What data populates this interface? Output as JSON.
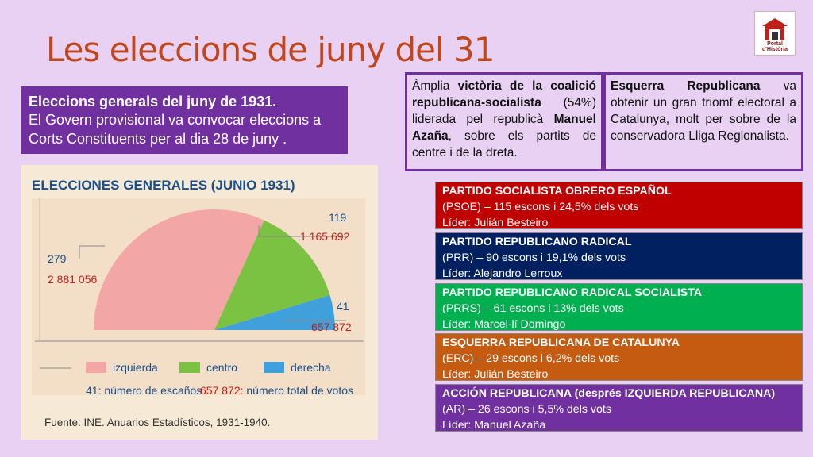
{
  "title": "Les eleccions de juny del 31",
  "logo": {
    "text": "Portal d'Història",
    "icon": "house-icon"
  },
  "intro": {
    "heading": "Eleccions generals del juny de 1931.",
    "body": "El Govern provisional va convocar eleccions a Corts Constituents per al dia 28 de juny ."
  },
  "box1": {
    "t1": "Àmplia ",
    "b1": "victòria de la coalició republicana-socialista",
    "t2": " (54%) liderada pel republicà ",
    "b2": "Manuel Azaña",
    "t3": ", sobre els partits de centre i de la dreta."
  },
  "box2": {
    "b1": "Esquerra Republicana",
    "t1": " va obtenir un gran triomf electoral a Catalunya, molt per sobre de la conservadora Lliga Regionalista."
  },
  "chart": {
    "heading": "ELECCIONES GENERALES (JUNIO 1931)",
    "labels": {
      "izq_seats": "279",
      "izq_votes": "2 881 056",
      "centro_seats": "119",
      "centro_votes": "1 165 692",
      "der_seats": "41",
      "der_votes": "657 872"
    },
    "legend": [
      "izquierda",
      "centro",
      "derecha"
    ],
    "note_seats_num": "41:",
    "note_seats": " número de escaños",
    "note_votes_num": "657 872:",
    "note_votes": " número total de votos",
    "source": "Fuente: INE. Anuarios Estadísticos, 1931-1940.",
    "colors": {
      "izquierda": "#f3a6a6",
      "centro": "#7cc242",
      "derecha": "#3fa0dc"
    }
  },
  "chart_data": {
    "type": "pie",
    "title": "ELECCIONES GENERALES (JUNIO 1931)",
    "categories": [
      "izquierda",
      "centro",
      "derecha"
    ],
    "series": [
      {
        "name": "número de escaños",
        "values": [
          279,
          119,
          41
        ]
      },
      {
        "name": "número total de votos",
        "values": [
          2881056,
          1165692,
          657872
        ]
      }
    ],
    "legend": "bottom"
  },
  "parties": [
    {
      "name": "PARTIDO SOCIALISTA OBRERO ESPAÑOL",
      "line2": "(PSOE) – 115 escons i 24,5% dels vots",
      "line3": "Líder: Julián Besteiro",
      "color": "#c00000"
    },
    {
      "name": "PARTIDO REPUBLICANO RADICAL",
      "line2": "(PRR) – 90 escons i 19,1% dels vots",
      "line3": "Líder: Alejandro Lerroux",
      "color": "#002060"
    },
    {
      "name": "PARTIDO REPUBLICANO RADICAL SOCIALISTA",
      "line2": "(PRRS) – 61 escons i 13% dels vots",
      "line3": "Líder: Marcel·lí Domingo",
      "color": "#00b050"
    },
    {
      "name": "ESQUERRA REPUBLICANA DE CATALUNYA",
      "line2": "(ERC) – 29 escons i 6,2% dels vots",
      "line3": "Líder: Julián Besteiro",
      "color": "#c55a11"
    },
    {
      "name": "ACCIÓN REPUBLICANA (després IZQUIERDA REPUBLICANA)",
      "line2": "(AR) – 26 escons i 5,5% dels vots",
      "line3": "Líder: Manuel Azaña",
      "color": "#7030a0"
    }
  ]
}
